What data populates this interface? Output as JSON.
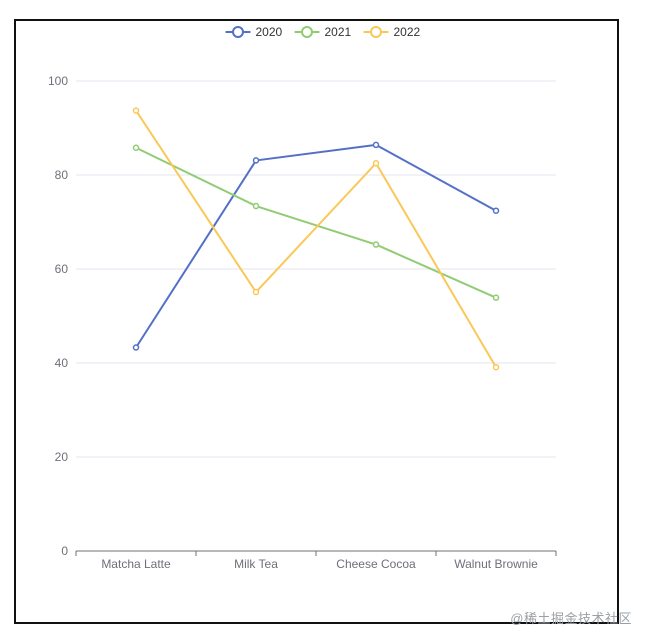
{
  "chart_data": {
    "type": "line",
    "categories": [
      "Matcha Latte",
      "Milk Tea",
      "Cheese Cocoa",
      "Walnut Brownie"
    ],
    "series": [
      {
        "name": "2020",
        "color": "#5470c6",
        "values": [
          43.3,
          83.1,
          86.4,
          72.4
        ]
      },
      {
        "name": "2021",
        "color": "#91cc75",
        "values": [
          85.8,
          73.4,
          65.2,
          53.9
        ]
      },
      {
        "name": "2022",
        "color": "#fac858",
        "values": [
          93.7,
          55.1,
          82.5,
          39.1
        ]
      }
    ],
    "ylim": [
      0,
      100
    ],
    "yticks": [
      0,
      20,
      40,
      60,
      80,
      100
    ],
    "grid": true,
    "legend_position": "top-center"
  },
  "watermark": "@稀土掘金技术社区"
}
